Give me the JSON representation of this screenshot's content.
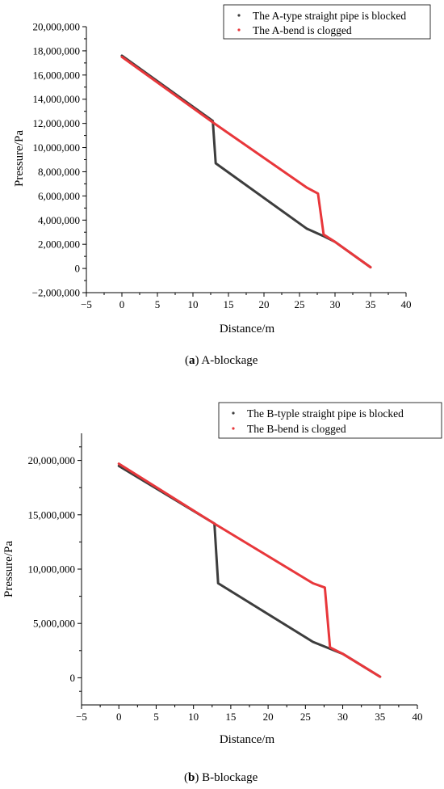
{
  "chart_data": [
    {
      "type": "line",
      "caption_letter": "a",
      "caption_text": " A-blockage",
      "xlabel": "Distance/m",
      "ylabel": "Pressure/Pa",
      "xlim": [
        -5,
        40
      ],
      "ylim": [
        -2000000,
        20000000
      ],
      "xticks": [
        "−5",
        "0",
        "5",
        "10",
        "15",
        "20",
        "25",
        "30",
        "35",
        "40"
      ],
      "xtick_values": [
        -5,
        0,
        5,
        10,
        15,
        20,
        25,
        30,
        35,
        40
      ],
      "yticks": [
        "−2,000,000",
        "0",
        "2,000,000",
        "4,000,000",
        "6,000,000",
        "8,000,000",
        "10,000,000",
        "12,000,000",
        "14,000,000",
        "16,000,000",
        "18,000,000",
        "20,000,000"
      ],
      "ytick_values": [
        -2000000,
        0,
        2000000,
        4000000,
        6000000,
        8000000,
        10000000,
        12000000,
        14000000,
        16000000,
        18000000,
        20000000
      ],
      "legend_position": "top-right",
      "series": [
        {
          "name": "The A-type straight pipe is blocked",
          "color": "#3d3d3d",
          "x": [
            0,
            12.8,
            13.2,
            26.0,
            28.3,
            30.0,
            35.0
          ],
          "y": [
            17600000,
            12200000,
            8700000,
            3300000,
            2700000,
            2200000,
            100000
          ]
        },
        {
          "name": "The A-bend is clogged",
          "color": "#e8373b",
          "x": [
            0,
            13.0,
            26.0,
            27.6,
            28.4,
            30.0,
            35.0
          ],
          "y": [
            17500000,
            12000000,
            6700000,
            6200000,
            2800000,
            2200000,
            100000
          ]
        }
      ]
    },
    {
      "type": "line",
      "caption_letter": "b",
      "caption_text": " B-blockage",
      "xlabel": "Distance/m",
      "ylabel": "Pressure/Pa",
      "xlim": [
        -5,
        40
      ],
      "ylim": [
        -2500000,
        22500000
      ],
      "xticks": [
        "−5",
        "0",
        "5",
        "10",
        "15",
        "20",
        "25",
        "30",
        "35",
        "40"
      ],
      "xtick_values": [
        -5,
        0,
        5,
        10,
        15,
        20,
        25,
        30,
        35,
        40
      ],
      "yticks": [
        "0",
        "5,000,000",
        "10,000,000",
        "15,000,000",
        "20,000,000"
      ],
      "ytick_values": [
        0,
        5000000,
        10000000,
        15000000,
        20000000
      ],
      "legend_position": "top-right",
      "series": [
        {
          "name": "The B-typle straight pipe is blocked",
          "color": "#3d3d3d",
          "x": [
            0,
            12.8,
            13.3,
            26.0,
            28.2,
            30.0,
            35.0
          ],
          "y": [
            19500000,
            14200000,
            8700000,
            3300000,
            2700000,
            2200000,
            100000
          ]
        },
        {
          "name": "The B-bend is clogged",
          "color": "#e8373b",
          "x": [
            0,
            13.0,
            26.0,
            27.6,
            28.3,
            30.0,
            35.0
          ],
          "y": [
            19700000,
            14100000,
            8700000,
            8300000,
            2800000,
            2200000,
            100000
          ]
        }
      ]
    }
  ]
}
